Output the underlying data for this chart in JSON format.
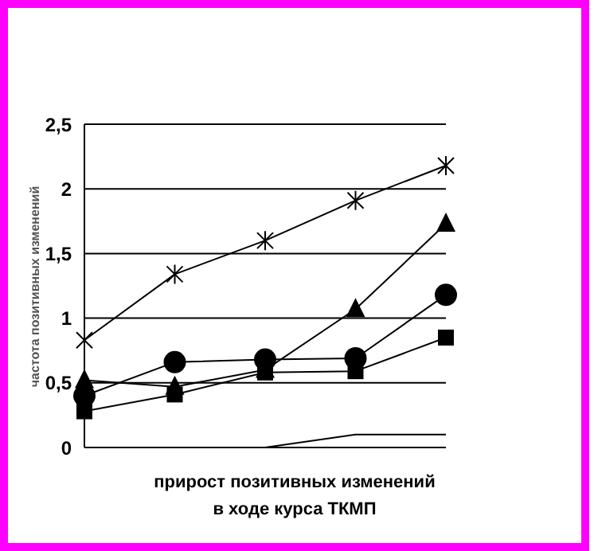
{
  "chart_data": {
    "type": "line",
    "xlabel": "прирост позитивных изменений\nв ходе курса  ТКМП",
    "ylabel": "частота позитивных изменений",
    "categories": [
      null,
      null,
      null,
      null,
      null
    ],
    "series": [
      {
        "color": "#000000",
        "marker": "cross",
        "values": [
          0.83,
          1.34,
          1.6,
          1.91,
          2.18
        ]
      },
      {
        "color": "#000000",
        "marker": "triangle",
        "values": [
          0.52,
          0.47,
          0.6,
          1.07,
          1.73
        ]
      },
      {
        "color": "#000000",
        "marker": "circle",
        "values": [
          0.4,
          0.66,
          0.68,
          0.69,
          1.18
        ]
      },
      {
        "color": "#000000",
        "marker": "square",
        "values": [
          0.28,
          0.41,
          0.58,
          0.59,
          0.85
        ]
      },
      {
        "color": "#000000",
        "marker": "none",
        "values": [
          0,
          0,
          0,
          0.1,
          0.1
        ]
      }
    ],
    "ylim": [
      0,
      2.5
    ],
    "yticks": [
      0,
      {
        "value": 0.5,
        "label": "0,5"
      },
      1,
      {
        "value": 1.5,
        "label": "1,5"
      },
      2,
      {
        "value": 2.5,
        "label": "2,5"
      }
    ],
    "grid": "y",
    "tick_labels": "y"
  }
}
